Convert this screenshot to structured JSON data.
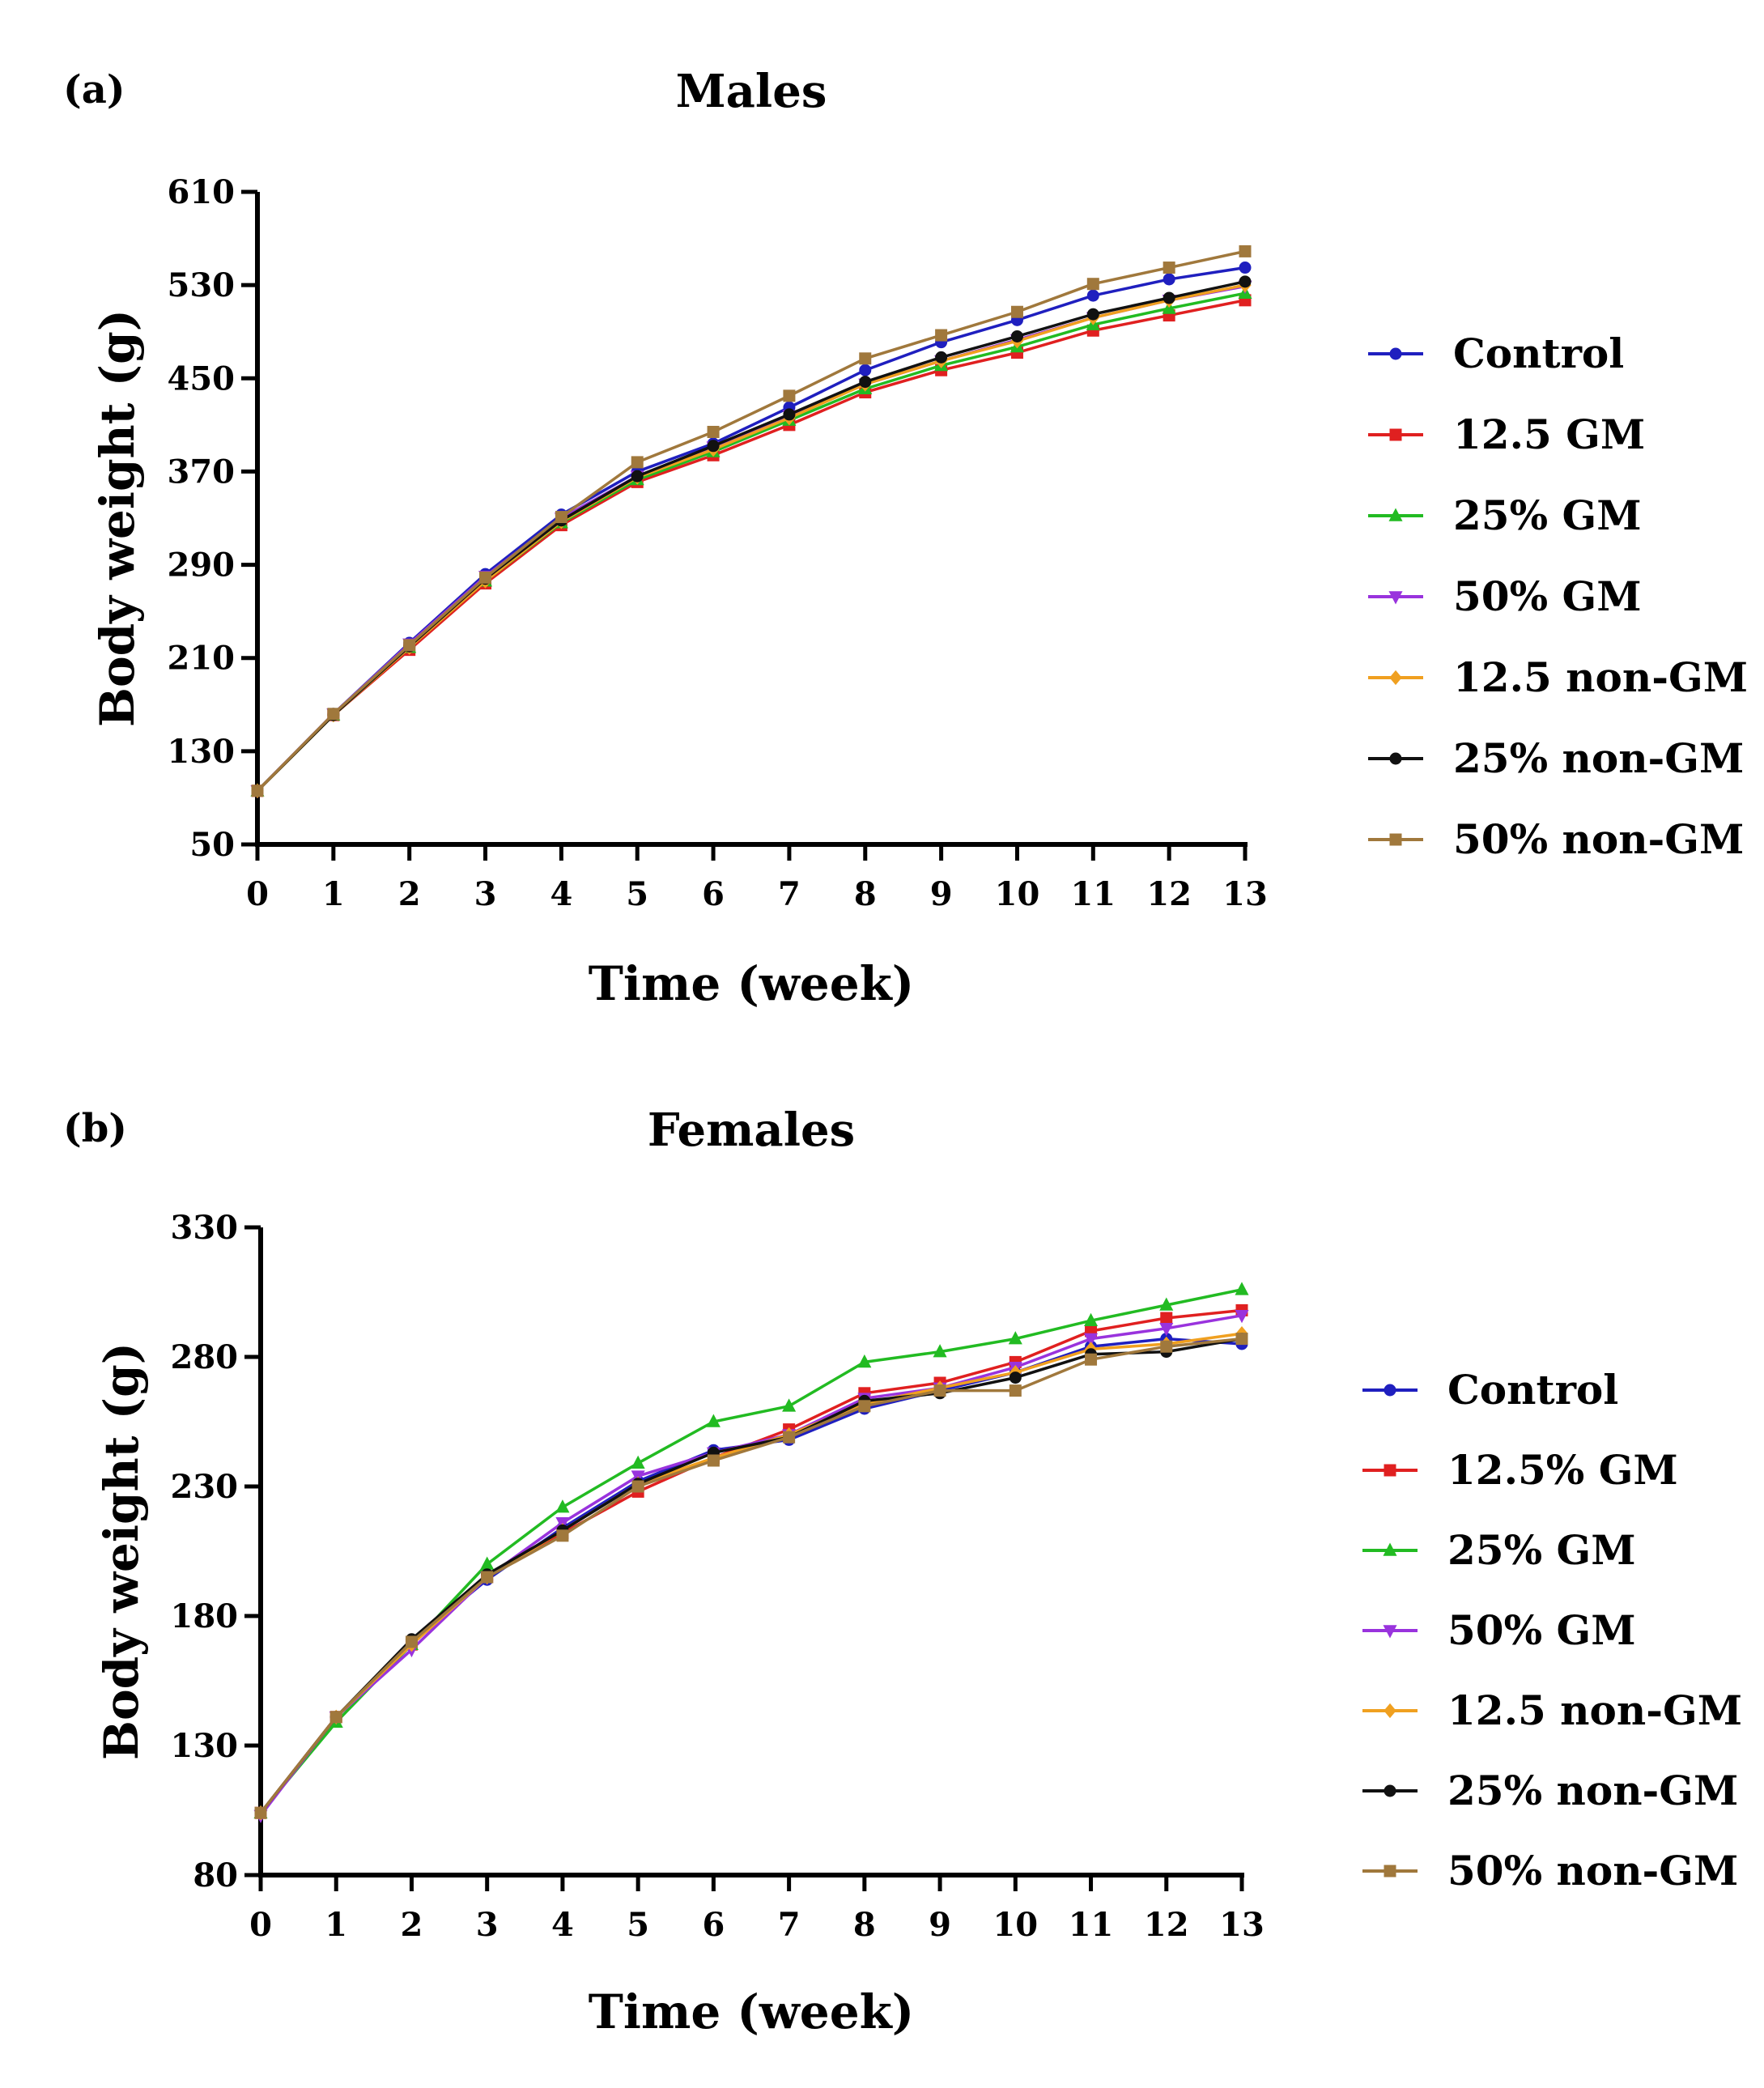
{
  "chart_data": [
    {
      "panel_label": "(a)",
      "type": "line",
      "title": "Males",
      "xlabel": "Time (week)",
      "ylabel": "Body weight (g)",
      "xlim": [
        0,
        13
      ],
      "ylim": [
        50,
        610
      ],
      "xticks": [
        0,
        1,
        2,
        3,
        4,
        5,
        6,
        7,
        8,
        9,
        10,
        11,
        12,
        13
      ],
      "yticks": [
        50,
        130,
        210,
        290,
        370,
        450,
        530,
        610
      ],
      "x": [
        0,
        1,
        2,
        3,
        4,
        5,
        6,
        7,
        8,
        9,
        10,
        11,
        12,
        13
      ],
      "legend_position": "right",
      "series": [
        {
          "name": "Control",
          "color": "#1f1fbf",
          "marker": "circle",
          "values": [
            96,
            162,
            223,
            282,
            333,
            370,
            394,
            425,
            457,
            481,
            500,
            521,
            535,
            545
          ]
        },
        {
          "name": "12.5 GM",
          "color": "#e02020",
          "marker": "square",
          "values": [
            96,
            161,
            217,
            274,
            324,
            361,
            384,
            410,
            438,
            457,
            472,
            491,
            504,
            517
          ]
        },
        {
          "name": "25% GM",
          "color": "#22bb22",
          "marker": "triangle-up",
          "values": [
            96,
            161,
            219,
            276,
            326,
            363,
            387,
            414,
            441,
            461,
            477,
            496,
            510,
            523
          ]
        },
        {
          "name": "50% GM",
          "color": "#9933dd",
          "marker": "triangle-down",
          "values": [
            96,
            162,
            222,
            280,
            330,
            366,
            391,
            418,
            445,
            465,
            483,
            502,
            517,
            529
          ]
        },
        {
          "name": "12.5 non-GM",
          "color": "#f0a020",
          "marker": "diamond",
          "values": [
            96,
            161,
            219,
            276,
            327,
            365,
            389,
            416,
            445,
            465,
            482,
            502,
            517,
            530
          ]
        },
        {
          "name": "25% non-GM",
          "color": "#111111",
          "marker": "circle",
          "values": [
            96,
            161,
            220,
            278,
            328,
            366,
            392,
            419,
            447,
            468,
            486,
            505,
            519,
            533
          ]
        },
        {
          "name": "50% non-GM",
          "color": "#a0783c",
          "marker": "square",
          "values": [
            96,
            162,
            221,
            279,
            331,
            378,
            404,
            435,
            467,
            487,
            507,
            531,
            545,
            559
          ]
        }
      ]
    },
    {
      "panel_label": "(b)",
      "type": "line",
      "title": "Females",
      "xlabel": "Time (week)",
      "ylabel": "Body weight (g)",
      "xlim": [
        0,
        13
      ],
      "ylim": [
        80,
        330
      ],
      "xticks": [
        0,
        1,
        2,
        3,
        4,
        5,
        6,
        7,
        8,
        9,
        10,
        11,
        12,
        13
      ],
      "yticks": [
        80,
        130,
        180,
        230,
        280,
        330
      ],
      "x": [
        0,
        1,
        2,
        3,
        4,
        5,
        6,
        7,
        8,
        9,
        10,
        11,
        12,
        13
      ],
      "legend_position": "right",
      "series": [
        {
          "name": "Control",
          "color": "#1f1fbf",
          "marker": "circle",
          "values": [
            104,
            141,
            170,
            194,
            214,
            232,
            244,
            248,
            260,
            267,
            274,
            284,
            287,
            285
          ]
        },
        {
          "name": "12.5% GM",
          "color": "#e02020",
          "marker": "square",
          "values": [
            104,
            141,
            169,
            195,
            212,
            228,
            241,
            252,
            266,
            270,
            278,
            290,
            295,
            298
          ]
        },
        {
          "name": "25% GM",
          "color": "#22bb22",
          "marker": "triangle-up",
          "values": [
            104,
            139,
            169,
            200,
            222,
            239,
            255,
            261,
            278,
            282,
            287,
            294,
            300,
            306
          ]
        },
        {
          "name": "50% GM",
          "color": "#9933dd",
          "marker": "triangle-down",
          "values": [
            103,
            141,
            167,
            195,
            216,
            234,
            243,
            250,
            264,
            268,
            276,
            287,
            291,
            296
          ]
        },
        {
          "name": "12.5 non-GM",
          "color": "#f0a020",
          "marker": "diamond",
          "values": [
            104,
            141,
            169,
            195,
            213,
            231,
            241,
            250,
            262,
            268,
            274,
            283,
            285,
            289
          ]
        },
        {
          "name": "25% non-GM",
          "color": "#111111",
          "marker": "circle",
          "values": [
            104,
            141,
            171,
            196,
            213,
            231,
            243,
            249,
            263,
            266,
            272,
            281,
            282,
            287
          ]
        },
        {
          "name": "50% non-GM",
          "color": "#a0783c",
          "marker": "square",
          "values": [
            104,
            141,
            170,
            195,
            211,
            230,
            240,
            249,
            261,
            267,
            267,
            279,
            284,
            287
          ]
        }
      ]
    }
  ]
}
